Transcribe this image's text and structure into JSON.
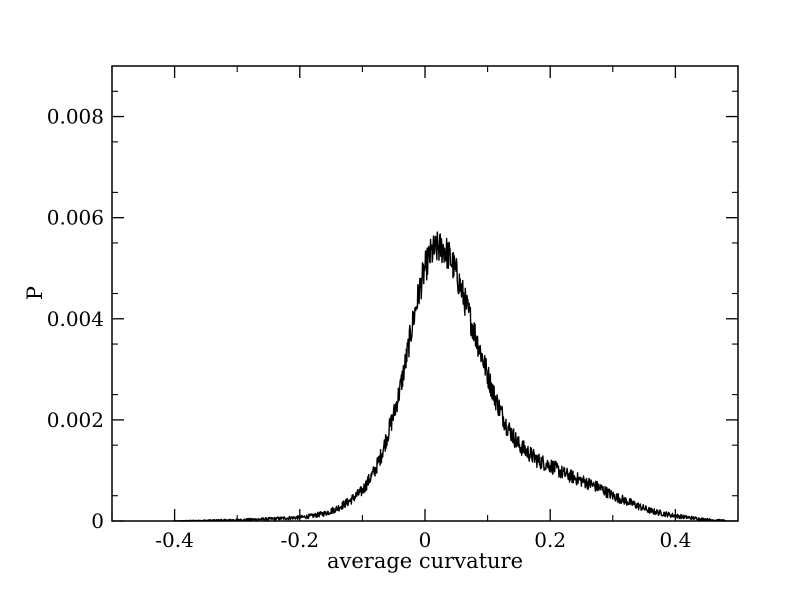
{
  "chart_data": {
    "type": "line",
    "title": "",
    "xlabel": "average curvature",
    "ylabel": "P",
    "xlim": [
      -0.5,
      0.5
    ],
    "ylim": [
      0,
      0.009
    ],
    "xticks": [
      -0.4,
      -0.2,
      0,
      0.2,
      0.4
    ],
    "xtick_labels": [
      "-0.4",
      "-0.2",
      "0",
      "0.2",
      "0.4"
    ],
    "yticks": [
      0,
      0.002,
      0.004,
      0.006,
      0.008
    ],
    "ytick_labels": [
      "0",
      "0.002",
      "0.004",
      "0.006",
      "0.008"
    ],
    "grid": false,
    "line_color": "#000000",
    "series": [
      {
        "x": [
          -0.4,
          -0.35,
          -0.3,
          -0.25,
          -0.2,
          -0.18,
          -0.16,
          -0.14,
          -0.12,
          -0.1,
          -0.09,
          -0.08,
          -0.07,
          -0.06,
          -0.05,
          -0.04,
          -0.03,
          -0.02,
          -0.01,
          0.0,
          0.01,
          0.02,
          0.03,
          0.04,
          0.05,
          0.06,
          0.07,
          0.08,
          0.09,
          0.1,
          0.11,
          0.12,
          0.13,
          0.14,
          0.15,
          0.16,
          0.18,
          0.2,
          0.22,
          0.24,
          0.26,
          0.28,
          0.3,
          0.32,
          0.34,
          0.36,
          0.38,
          0.4,
          0.42,
          0.44,
          0.46,
          0.48
        ],
        "y": [
          0.0,
          1e-05,
          2e-05,
          4e-05,
          7e-05,
          0.0001,
          0.00015,
          0.00025,
          0.0004,
          0.0006,
          0.0008,
          0.001,
          0.0013,
          0.0017,
          0.0021,
          0.0026,
          0.0032,
          0.0039,
          0.0045,
          0.005,
          0.0053,
          0.0054,
          0.0054,
          0.0052,
          0.0049,
          0.0045,
          0.0041,
          0.0037,
          0.0033,
          0.0029,
          0.0025,
          0.0022,
          0.0019,
          0.0017,
          0.0015,
          0.0014,
          0.0012,
          0.0011,
          0.00095,
          0.00085,
          0.00075,
          0.00065,
          0.0005,
          0.0004,
          0.0003,
          0.0002,
          0.00015,
          0.0001,
          7e-05,
          4e-05,
          2e-05,
          1e-05
        ]
      }
    ]
  }
}
